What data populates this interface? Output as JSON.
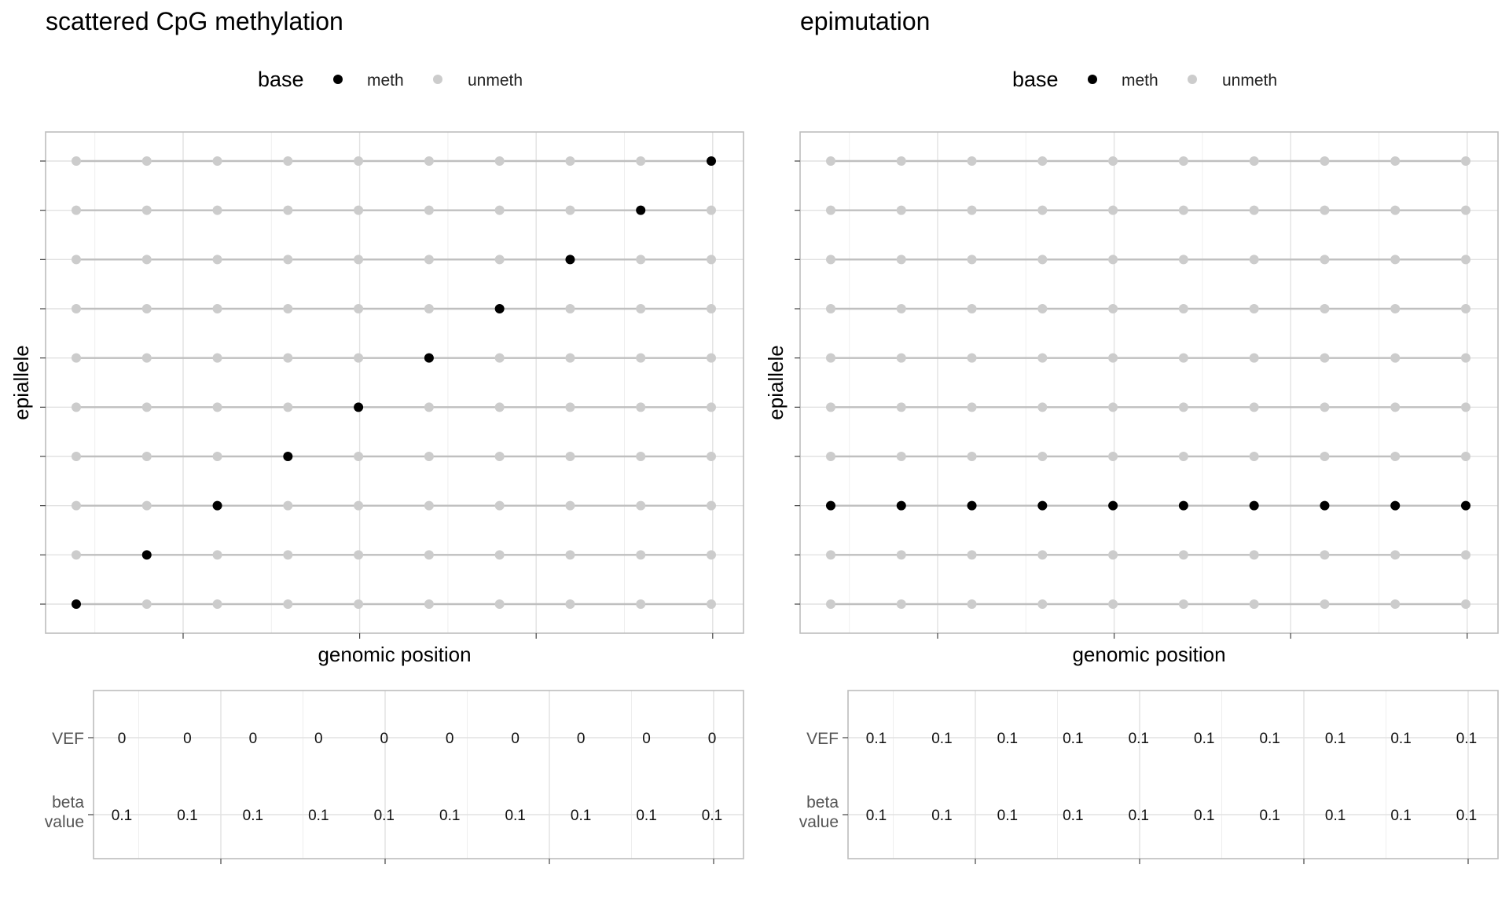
{
  "chart_data": [
    {
      "type": "scatter",
      "title": "scattered CpG methylation",
      "legend": {
        "title": "base",
        "placement": "top",
        "entries": [
          {
            "label": "meth",
            "color": "#000000"
          },
          {
            "label": "unmeth",
            "color": "#cccccc"
          }
        ]
      },
      "xlabel": "genomic position",
      "ylabel": "epiallele",
      "cpg_positions": [
        1,
        2,
        3,
        4,
        5,
        6,
        7,
        8,
        9,
        10
      ],
      "epialleles": [
        1,
        2,
        3,
        4,
        5,
        6,
        7,
        8,
        9,
        10
      ],
      "methylated": [
        [
          1,
          1
        ],
        [
          2,
          2
        ],
        [
          3,
          3
        ],
        [
          4,
          4
        ],
        [
          5,
          5
        ],
        [
          6,
          6
        ],
        [
          7,
          7
        ],
        [
          8,
          8
        ],
        [
          9,
          9
        ],
        [
          10,
          10
        ]
      ],
      "grid": true,
      "table": {
        "rows": [
          {
            "label": "VEF",
            "values": [
              "0",
              "0",
              "0",
              "0",
              "0",
              "0",
              "0",
              "0",
              "0",
              "0"
            ]
          },
          {
            "label_lines": [
              "beta",
              "value"
            ],
            "values": [
              "0.1",
              "0.1",
              "0.1",
              "0.1",
              "0.1",
              "0.1",
              "0.1",
              "0.1",
              "0.1",
              "0.1"
            ]
          }
        ]
      }
    },
    {
      "type": "scatter",
      "title": "epimutation",
      "legend": {
        "title": "base",
        "placement": "top",
        "entries": [
          {
            "label": "meth",
            "color": "#000000"
          },
          {
            "label": "unmeth",
            "color": "#cccccc"
          }
        ]
      },
      "xlabel": "genomic position",
      "ylabel": "epiallele",
      "cpg_positions": [
        1,
        2,
        3,
        4,
        5,
        6,
        7,
        8,
        9,
        10
      ],
      "epialleles": [
        1,
        2,
        3,
        4,
        5,
        6,
        7,
        8,
        9,
        10
      ],
      "methylated": [
        [
          1,
          3
        ],
        [
          2,
          3
        ],
        [
          3,
          3
        ],
        [
          4,
          3
        ],
        [
          5,
          3
        ],
        [
          6,
          3
        ],
        [
          7,
          3
        ],
        [
          8,
          3
        ],
        [
          9,
          3
        ],
        [
          10,
          3
        ]
      ],
      "grid": true,
      "table": {
        "rows": [
          {
            "label": "VEF",
            "values": [
              "0.1",
              "0.1",
              "0.1",
              "0.1",
              "0.1",
              "0.1",
              "0.1",
              "0.1",
              "0.1",
              "0.1"
            ]
          },
          {
            "label_lines": [
              "beta",
              "value"
            ],
            "values": [
              "0.1",
              "0.1",
              "0.1",
              "0.1",
              "0.1",
              "0.1",
              "0.1",
              "0.1",
              "0.1",
              "0.1"
            ]
          }
        ]
      }
    }
  ]
}
